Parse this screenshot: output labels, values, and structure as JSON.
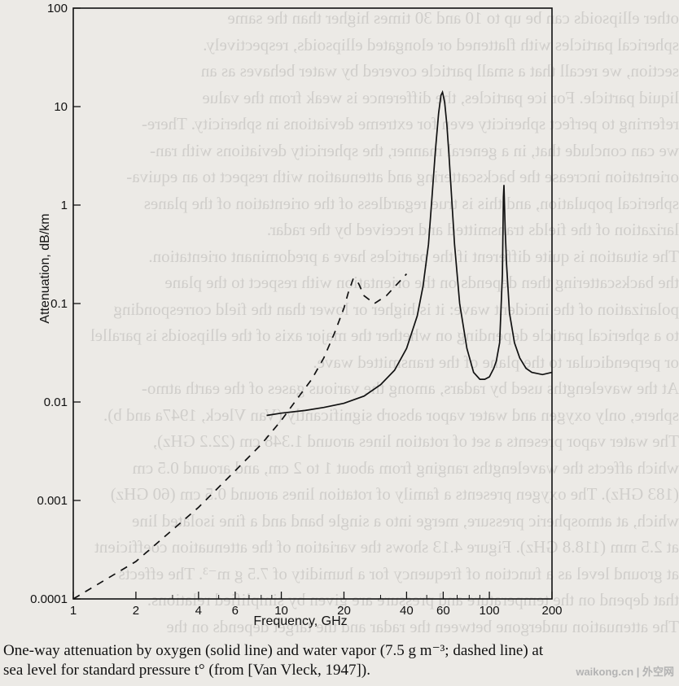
{
  "chart_data": {
    "type": "line",
    "title": "",
    "xlabel": "Frequency, GHz",
    "ylabel": "Attenuation, dB/km",
    "x_scale": "log",
    "y_scale": "log",
    "xlim": [
      1,
      200
    ],
    "ylim": [
      0.0001,
      100
    ],
    "x_ticks": [
      1,
      2,
      4,
      6,
      10,
      20,
      40,
      60,
      100,
      200
    ],
    "x_tick_labels": [
      "1",
      "2",
      "4",
      "6",
      "10",
      "20",
      "40",
      "60",
      "100",
      "200"
    ],
    "y_ticks": [
      0.0001,
      0.001,
      0.01,
      0.1,
      1,
      10,
      100
    ],
    "y_tick_labels": [
      "0.0001",
      "0.001",
      "0.01",
      "0.1",
      "1",
      "10",
      "100"
    ],
    "grid": false,
    "series": [
      {
        "line_style": "solid",
        "x": [
          8.5,
          10,
          13,
          16,
          20,
          25,
          30,
          35,
          40,
          45,
          48,
          51,
          53,
          55,
          57,
          58.5,
          59.5,
          60,
          61,
          62.5,
          64,
          66,
          68,
          72,
          78,
          84,
          90,
          95,
          100,
          105,
          108,
          112,
          115.5,
          116.8,
          117.5,
          119,
          121,
          125,
          132,
          140,
          150,
          160,
          180,
          200
        ],
        "y": [
          0.0073,
          0.0077,
          0.0082,
          0.0088,
          0.0097,
          0.0115,
          0.015,
          0.021,
          0.035,
          0.075,
          0.15,
          0.4,
          1.2,
          3.5,
          8.5,
          13,
          14,
          13,
          11,
          6.5,
          3.2,
          1.1,
          0.4,
          0.1,
          0.035,
          0.02,
          0.017,
          0.017,
          0.018,
          0.022,
          0.026,
          0.04,
          0.2,
          1.2,
          1.6,
          0.6,
          0.25,
          0.08,
          0.04,
          0.028,
          0.022,
          0.02,
          0.019,
          0.02
        ]
      },
      {
        "line_style": "dashed",
        "x": [
          1,
          2,
          4,
          6,
          8,
          10,
          12,
          14,
          16,
          18,
          20,
          21,
          22.2,
          23.5,
          25,
          28,
          32,
          40
        ],
        "y": [
          0.0001,
          0.00024,
          0.00085,
          0.002,
          0.0037,
          0.0065,
          0.011,
          0.017,
          0.028,
          0.05,
          0.09,
          0.13,
          0.18,
          0.16,
          0.12,
          0.1,
          0.12,
          0.2
        ]
      }
    ]
  },
  "caption": {
    "line1": "One-way attenuation by oxygen (solid line) and water vapor (7.5 g m⁻³; dashed line) at",
    "line2": "sea level for standard pressure t° (from [Van Vleck, 1947])."
  },
  "watermark": "waikong.cn | 外空网",
  "bleed_lines": [
    "other ellipsoids can be up to 10 and 30 times higher than the same",
    "spherical particles with flattened or elongated ellipsoids, respectively.",
    "section, we recall that a small particle covered by water behaves as an",
    "liquid particle. For ice particles, the difference is weak from the value",
    "referring to perfect sphericity even for extreme deviations in sphericity. There-",
    "we can conclude that, in a general manner, the sphericity deviations with ran-",
    "orientation increase the backscattering and attenuation with respect to an equiva-",
    "spherical population, and this is true regardless of the orientation of the planes",
    "larization of the fields transmitted and received by the radar.",
    "The situation is quite different if the particles have a predominant orientation.",
    "the backscattering then depends on the orientation with respect to the plane",
    "polarization of the incident wave: it is higher or lower than the field corresponding",
    "to a spherical particle depending on whether the major axis of the ellipsoids is parallel",
    "or perpendicular to the plane of the transmitted wave.",
    "At the wavelengths used by radars, among the various gases of the earth atmo-",
    "sphere, only oxygen and water vapor absorb significantly (Van Vleck, 1947a and b).",
    "The water vapor presents a set of rotation lines around 1.348 cm (22.2 GHz),",
    "which affects the wavelengths ranging from about 1 to 2 cm, and around 0.5 cm",
    "(183 GHz). The oxygen presents a family of rotation lines around 0.5 cm (60 GHz)",
    "which, at atmospheric pressure, merge into a single band and a fine isolated line",
    "at 2.5 mm (118.8 GHz). Figure 4.13 shows the variation of the attenuation coefficient",
    "at ground level as a function of frequency for a humidity of 7.5 g m⁻³. The effects",
    "that depend on the temperature and pressure are given by simplified relations.",
    "The attenuation undergone between the radar and the target depends on the"
  ]
}
